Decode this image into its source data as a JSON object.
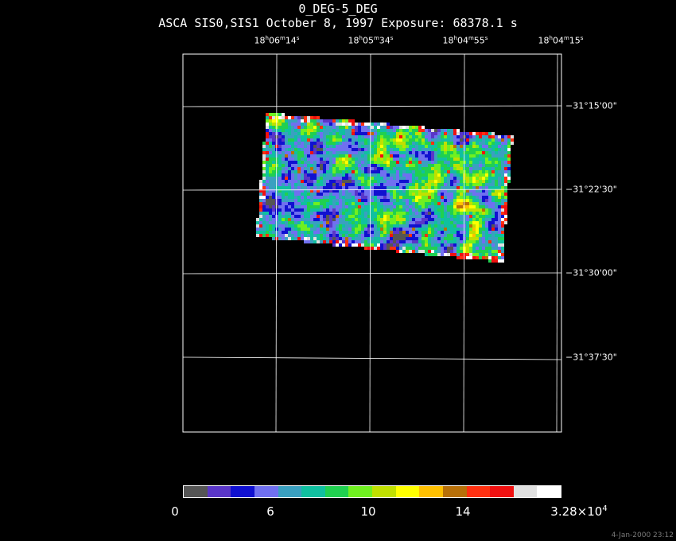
{
  "title": "0_DEG-5_DEG",
  "subtitle": "ASCA SIS0,SIS1 October 8, 1997 Exposure: 68378.1 s",
  "timestamp": "4-Jan-2000 23:12",
  "ra_labels": [
    {
      "h": "18",
      "m": "06",
      "s": "14"
    },
    {
      "h": "18",
      "m": "05",
      "s": "34"
    },
    {
      "h": "18",
      "m": "04",
      "s": "55"
    },
    {
      "h": "18",
      "m": "04",
      "s": "15"
    }
  ],
  "dec_labels": [
    "−31°15'00\"",
    "−31°22'30\"",
    "−31°30'00\"",
    "−31°37'30\""
  ],
  "colorbar": {
    "labels": [
      "0",
      "6",
      "10",
      "14"
    ],
    "max_mantissa": "3.28×10",
    "max_exponent": "4",
    "colors": [
      "#555555",
      "#5a36c8",
      "#1010d0",
      "#7070f0",
      "#3aa0c0",
      "#10c0a0",
      "#20d050",
      "#70f020",
      "#c0e000",
      "#ffff00",
      "#ffc000",
      "#b87008",
      "#ff3010",
      "#f01010",
      "#e0e0e0",
      "#ffffff"
    ]
  }
}
